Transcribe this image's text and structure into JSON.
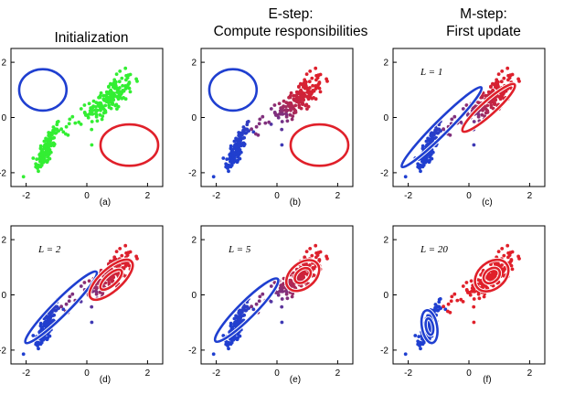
{
  "titles": [
    {
      "lines": [
        "Initialization"
      ]
    },
    {
      "lines": [
        "E-step:",
        "Compute responsibilities"
      ]
    },
    {
      "lines": [
        "M-step:",
        "First update"
      ]
    }
  ],
  "colors": {
    "blue": "#1f3fd0",
    "red": "#e0202a",
    "green": "#33ee33",
    "frame": "#000000"
  },
  "chart_data": [
    {
      "type": "scatter",
      "label": "(a)",
      "mode": "green",
      "annotation": "",
      "xlim": [
        -2.5,
        2.5
      ],
      "ylim": [
        -2.5,
        2.5
      ],
      "xticks": [
        -2,
        0,
        2
      ],
      "yticks": [
        2,
        0,
        -2
      ],
      "ellipses": [
        {
          "color": "blue",
          "cx": -1.45,
          "cy": 1.0,
          "rx": 0.78,
          "ry": 0.75,
          "angle": 0
        },
        {
          "color": "red",
          "cx": 1.4,
          "cy": -1.0,
          "rx": 0.95,
          "ry": 0.75,
          "angle": 0
        }
      ]
    },
    {
      "type": "scatter",
      "label": "(b)",
      "mode": "soft",
      "annotation": "",
      "xlim": [
        -2.5,
        2.5
      ],
      "ylim": [
        -2.5,
        2.5
      ],
      "xticks": [
        -2,
        0,
        2
      ],
      "yticks": [
        2,
        0,
        -2
      ],
      "ellipses": [
        {
          "color": "blue",
          "cx": -1.45,
          "cy": 1.0,
          "rx": 0.78,
          "ry": 0.75,
          "angle": 0
        },
        {
          "color": "red",
          "cx": 1.4,
          "cy": -1.0,
          "rx": 0.95,
          "ry": 0.75,
          "angle": 0
        }
      ]
    },
    {
      "type": "scatter",
      "label": "(c)",
      "mode": "soft",
      "annotation": "L = 1",
      "xlim": [
        -2.5,
        2.5
      ],
      "ylim": [
        -2.5,
        2.5
      ],
      "xticks": [
        -2,
        0,
        2
      ],
      "yticks": [
        2,
        0,
        -2
      ],
      "ellipses": [
        {
          "color": "blue",
          "cx": -0.9,
          "cy": -0.35,
          "rx": 1.85,
          "ry": 0.25,
          "angle": 45
        },
        {
          "color": "red",
          "cx": 0.65,
          "cy": 0.35,
          "rx": 1.15,
          "ry": 0.25,
          "angle": 42
        }
      ]
    },
    {
      "type": "scatter",
      "label": "(d)",
      "mode": "soft",
      "annotation": "L = 2",
      "xlim": [
        -2.5,
        2.5
      ],
      "ylim": [
        -2.5,
        2.5
      ],
      "xticks": [
        -2,
        0,
        2
      ],
      "yticks": [
        2,
        0,
        -2
      ],
      "ellipses": [
        {
          "color": "blue",
          "cx": -0.85,
          "cy": -0.45,
          "rx": 1.65,
          "ry": 0.28,
          "angle": 45
        },
        {
          "color": "red",
          "cx": 0.8,
          "cy": 0.55,
          "rx": 0.9,
          "ry": 0.4,
          "angle": 42
        },
        {
          "color": "red",
          "cx": 0.8,
          "cy": 0.55,
          "rx": 0.45,
          "ry": 0.2,
          "angle": 42
        }
      ]
    },
    {
      "type": "scatter",
      "label": "(e)",
      "mode": "soft",
      "annotation": "L = 5",
      "xlim": [
        -2.5,
        2.5
      ],
      "ylim": [
        -2.5,
        2.5
      ],
      "xticks": [
        -2,
        0,
        2
      ],
      "yticks": [
        2,
        0,
        -2
      ],
      "ellipses": [
        {
          "color": "blue",
          "cx": -1.0,
          "cy": -0.55,
          "rx": 1.45,
          "ry": 0.3,
          "angle": 45
        },
        {
          "color": "red",
          "cx": 0.85,
          "cy": 0.7,
          "rx": 0.62,
          "ry": 0.45,
          "angle": 40
        },
        {
          "color": "red",
          "cx": 0.85,
          "cy": 0.7,
          "rx": 0.3,
          "ry": 0.22,
          "angle": 40
        }
      ]
    },
    {
      "type": "scatter",
      "label": "(f)",
      "mode": "hard",
      "annotation": "L = 20",
      "xlim": [
        -2.5,
        2.5
      ],
      "ylim": [
        -2.5,
        2.5
      ],
      "xticks": [
        -2,
        0,
        2
      ],
      "yticks": [
        2,
        0,
        -2
      ],
      "ellipses": [
        {
          "color": "blue",
          "cx": -1.3,
          "cy": -1.15,
          "rx": 0.25,
          "ry": 0.6,
          "angle": 10
        },
        {
          "color": "blue",
          "cx": -1.3,
          "cy": -1.15,
          "rx": 0.12,
          "ry": 0.3,
          "angle": 10
        },
        {
          "color": "red",
          "cx": 0.75,
          "cy": 0.7,
          "rx": 0.62,
          "ry": 0.48,
          "angle": 40
        },
        {
          "color": "red",
          "cx": 0.75,
          "cy": 0.7,
          "rx": 0.3,
          "ry": 0.24,
          "angle": 40
        }
      ]
    }
  ]
}
